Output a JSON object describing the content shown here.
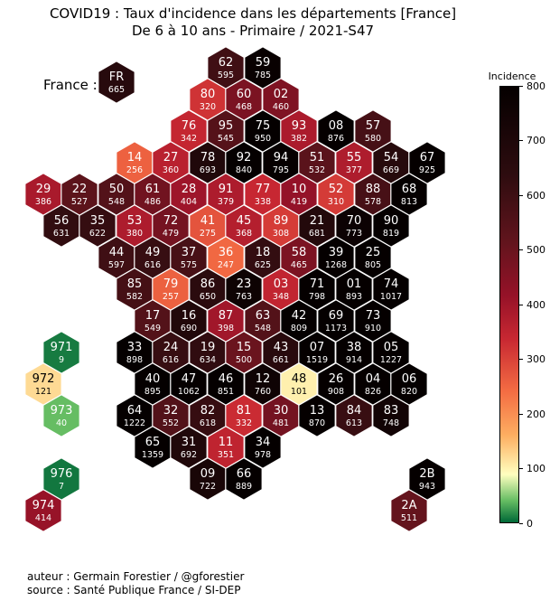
{
  "title_line1": "COVID19 : Taux d'incidence dans les départements [France]",
  "title_line2": "De 6 à 10 ans - Primaire / 2021-S47",
  "france_label": "France :",
  "colorbar": {
    "title": "Incidence",
    "min": 0,
    "max": 800,
    "ticks": [
      0,
      100,
      200,
      300,
      400,
      500,
      600,
      700,
      800
    ]
  },
  "credits": {
    "author": "auteur : Germain Forestier / @gforestier",
    "source": "source : Santé Publique France / SI-DEP"
  },
  "chart_data": {
    "type": "hexmap",
    "series_name": "Incidence",
    "national": {
      "code": "FR",
      "value": 665
    },
    "departments": [
      {
        "code": "62",
        "value": 595
      },
      {
        "code": "59",
        "value": 785
      },
      {
        "code": "80",
        "value": 320
      },
      {
        "code": "60",
        "value": 468
      },
      {
        "code": "02",
        "value": 460
      },
      {
        "code": "76",
        "value": 342
      },
      {
        "code": "95",
        "value": 545
      },
      {
        "code": "75",
        "value": 950
      },
      {
        "code": "93",
        "value": 382
      },
      {
        "code": "08",
        "value": 876
      },
      {
        "code": "57",
        "value": 580
      },
      {
        "code": "14",
        "value": 256
      },
      {
        "code": "27",
        "value": 360
      },
      {
        "code": "78",
        "value": 693
      },
      {
        "code": "92",
        "value": 840
      },
      {
        "code": "94",
        "value": 795
      },
      {
        "code": "51",
        "value": 532
      },
      {
        "code": "55",
        "value": 377
      },
      {
        "code": "54",
        "value": 669
      },
      {
        "code": "67",
        "value": 925
      },
      {
        "code": "29",
        "value": 386
      },
      {
        "code": "22",
        "value": 527
      },
      {
        "code": "50",
        "value": 548
      },
      {
        "code": "61",
        "value": 486
      },
      {
        "code": "28",
        "value": 404
      },
      {
        "code": "91",
        "value": 379
      },
      {
        "code": "77",
        "value": 338
      },
      {
        "code": "10",
        "value": 419
      },
      {
        "code": "52",
        "value": 310
      },
      {
        "code": "88",
        "value": 578
      },
      {
        "code": "68",
        "value": 813
      },
      {
        "code": "56",
        "value": 631
      },
      {
        "code": "35",
        "value": 622
      },
      {
        "code": "53",
        "value": 380
      },
      {
        "code": "72",
        "value": 479
      },
      {
        "code": "41",
        "value": 275
      },
      {
        "code": "45",
        "value": 368
      },
      {
        "code": "89",
        "value": 308
      },
      {
        "code": "21",
        "value": 681
      },
      {
        "code": "70",
        "value": 773
      },
      {
        "code": "90",
        "value": 819
      },
      {
        "code": "44",
        "value": 597
      },
      {
        "code": "49",
        "value": 616
      },
      {
        "code": "37",
        "value": 575
      },
      {
        "code": "36",
        "value": 247
      },
      {
        "code": "18",
        "value": 625
      },
      {
        "code": "58",
        "value": 465
      },
      {
        "code": "39",
        "value": 1268
      },
      {
        "code": "25",
        "value": 805
      },
      {
        "code": "85",
        "value": 582
      },
      {
        "code": "79",
        "value": 257
      },
      {
        "code": "86",
        "value": 650
      },
      {
        "code": "23",
        "value": 763
      },
      {
        "code": "03",
        "value": 348
      },
      {
        "code": "71",
        "value": 798
      },
      {
        "code": "01",
        "value": 893
      },
      {
        "code": "74",
        "value": 1017
      },
      {
        "code": "17",
        "value": 549
      },
      {
        "code": "16",
        "value": 690
      },
      {
        "code": "87",
        "value": 398
      },
      {
        "code": "63",
        "value": 548
      },
      {
        "code": "42",
        "value": 809
      },
      {
        "code": "69",
        "value": 1173
      },
      {
        "code": "73",
        "value": 910
      },
      {
        "code": "33",
        "value": 898
      },
      {
        "code": "24",
        "value": 616
      },
      {
        "code": "19",
        "value": 634
      },
      {
        "code": "15",
        "value": 500
      },
      {
        "code": "43",
        "value": 661
      },
      {
        "code": "07",
        "value": 1519
      },
      {
        "code": "38",
        "value": 914
      },
      {
        "code": "05",
        "value": 1227
      },
      {
        "code": "40",
        "value": 895
      },
      {
        "code": "47",
        "value": 1062
      },
      {
        "code": "46",
        "value": 851
      },
      {
        "code": "12",
        "value": 760
      },
      {
        "code": "48",
        "value": 101
      },
      {
        "code": "26",
        "value": 908
      },
      {
        "code": "04",
        "value": 826
      },
      {
        "code": "06",
        "value": 820
      },
      {
        "code": "64",
        "value": 1222
      },
      {
        "code": "32",
        "value": 552
      },
      {
        "code": "82",
        "value": 618
      },
      {
        "code": "81",
        "value": 332
      },
      {
        "code": "30",
        "value": 481
      },
      {
        "code": "13",
        "value": 870
      },
      {
        "code": "84",
        "value": 613
      },
      {
        "code": "83",
        "value": 748
      },
      {
        "code": "65",
        "value": 1359
      },
      {
        "code": "31",
        "value": 692
      },
      {
        "code": "11",
        "value": 351
      },
      {
        "code": "34",
        "value": 978
      },
      {
        "code": "09",
        "value": 722
      },
      {
        "code": "66",
        "value": 889
      },
      {
        "code": "2B",
        "value": 943
      },
      {
        "code": "2A",
        "value": 511
      },
      {
        "code": "971",
        "value": 9
      },
      {
        "code": "972",
        "value": 121
      },
      {
        "code": "973",
        "value": 40
      },
      {
        "code": "976",
        "value": 7
      },
      {
        "code": "974",
        "value": 414
      }
    ]
  }
}
